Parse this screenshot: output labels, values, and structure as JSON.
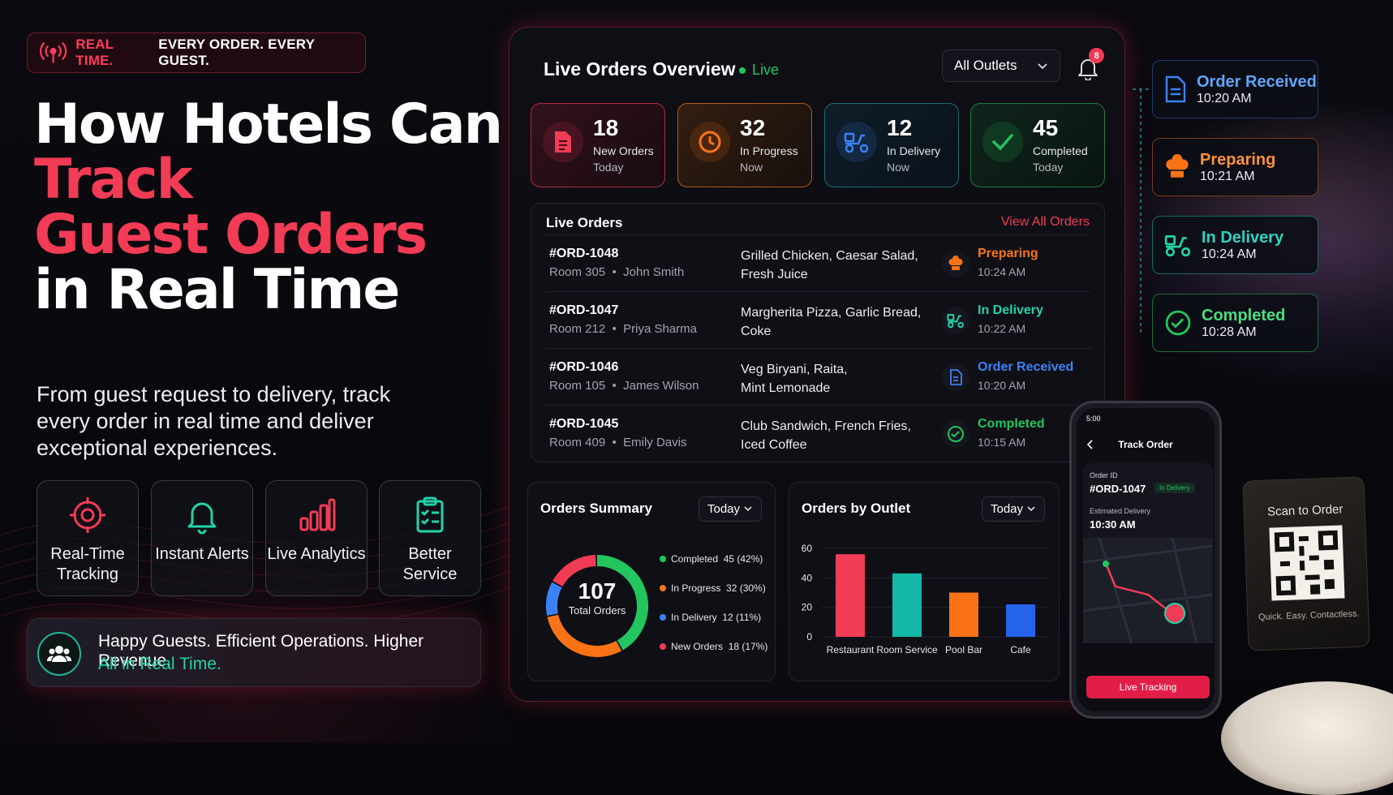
{
  "tagline": {
    "red": "REAL TIME.",
    "white": "EVERY ORDER. EVERY GUEST."
  },
  "headline": {
    "line1": "How Hotels Can",
    "line2": "Track",
    "line3": "Guest Orders",
    "line4": "in Real Time"
  },
  "subtitle": "From guest request to delivery, track every order in real time and deliver exceptional experiences.",
  "features": [
    {
      "label": "Real-Time Tracking",
      "icon": "target-icon"
    },
    {
      "label": "Instant Alerts",
      "icon": "bell-icon"
    },
    {
      "label": "Live Analytics",
      "icon": "bar-chart-icon"
    },
    {
      "label": "Better Service",
      "icon": "clipboard-check-icon"
    }
  ],
  "banner": {
    "line1": "Happy Guests. Efficient Operations. Higher Revenue.",
    "line2": "All in Real Time.",
    "icon": "users-icon"
  },
  "dashboard": {
    "title": "Live Orders Overview",
    "live_label": "Live",
    "outlet_select": "All Outlets",
    "notification_count": "8",
    "stats": [
      {
        "value": "18",
        "label": "New Orders",
        "sub": "Today",
        "color": "#f23b55",
        "icon": "document-icon"
      },
      {
        "value": "32",
        "label": "In Progress",
        "sub": "Now",
        "color": "#f97316",
        "icon": "clock-icon"
      },
      {
        "value": "12",
        "label": "In Delivery",
        "sub": "Now",
        "color": "#3b82f6",
        "icon": "delivery-scooter-icon"
      },
      {
        "value": "45",
        "label": "Completed",
        "sub": "Today",
        "color": "#22c55e",
        "icon": "check-icon"
      }
    ],
    "live_orders": {
      "title": "Live Orders",
      "view_all": "View All Orders",
      "rows": [
        {
          "id": "#ORD-1048",
          "room": "Room 305",
          "guest": "John Smith",
          "items1": "Grilled Chicken, Caesar Salad,",
          "items2": "Fresh Juice",
          "status": "Preparing",
          "time": "10:24 AM",
          "color": "#f97316"
        },
        {
          "id": "#ORD-1047",
          "room": "Room 212",
          "guest": "Priya Sharma",
          "items1": "Margherita Pizza, Garlic Bread,",
          "items2": "Coke",
          "status": "In Delivery",
          "time": "10:22 AM",
          "color": "#22d3a8"
        },
        {
          "id": "#ORD-1046",
          "room": "Room 105",
          "guest": "James Wilson",
          "items1": "Veg Biryani, Raita,",
          "items2": "Mint Lemonade",
          "status": "Order Received",
          "time": "10:20 AM",
          "color": "#3b82f6"
        },
        {
          "id": "#ORD-1045",
          "room": "Room 409",
          "guest": "Emily Davis",
          "items1": "Club Sandwich, French Fries,",
          "items2": "Iced Coffee",
          "status": "Completed",
          "time": "10:15 AM",
          "color": "#22c55e"
        }
      ]
    },
    "summary": {
      "title": "Orders Summary",
      "period": "Today",
      "total": "107",
      "total_label": "Total Orders",
      "legend": [
        {
          "name": "Completed",
          "value": "45 (42%)",
          "color": "#22c55e"
        },
        {
          "name": "In Progress",
          "value": "32 (30%)",
          "color": "#f97316"
        },
        {
          "name": "In Delivery",
          "value": "12 (11%)",
          "color": "#3b82f6"
        },
        {
          "name": "New Orders",
          "value": "18 (17%)",
          "color": "#f23b55"
        }
      ]
    },
    "by_outlet": {
      "title": "Orders by Outlet",
      "period": "Today"
    }
  },
  "chart_data": [
    {
      "type": "pie",
      "categories": [
        "Completed",
        "In Progress",
        "In Delivery",
        "New Orders"
      ],
      "values": [
        45,
        32,
        12,
        18
      ],
      "title": "Orders Summary"
    },
    {
      "type": "bar",
      "categories": [
        "Restaurant",
        "Room Service",
        "Pool Bar",
        "Cafe"
      ],
      "values": [
        56,
        43,
        30,
        22
      ],
      "colors": [
        "#f23b55",
        "#14b8a6",
        "#f97316",
        "#2563eb"
      ],
      "yticks": [
        "0",
        "20",
        "40",
        "60"
      ],
      "ylim": [
        0,
        66
      ],
      "title": "Orders by Outlet"
    }
  ],
  "timeline": [
    {
      "label": "Order Received",
      "time": "10:20 AM",
      "color": "#3b82f6",
      "icon": "document-icon"
    },
    {
      "label": "Preparing",
      "time": "10:21 AM",
      "color": "#f97316",
      "icon": "chef-hat-icon"
    },
    {
      "label": "In Delivery",
      "time": "10:24 AM",
      "color": "#22d3a8",
      "icon": "delivery-scooter-icon"
    },
    {
      "label": "Completed",
      "time": "10:28 AM",
      "color": "#22c55e",
      "icon": "check-circle-icon"
    }
  ],
  "phone": {
    "clock": "5:00",
    "title": "Track Order",
    "order_id_label": "Order ID",
    "order_id": "#ORD-1047",
    "status": "In Delivery",
    "eta_label": "Estimated Delivery",
    "eta": "10:30 AM",
    "button": "Live Tracking"
  },
  "qr_stand": {
    "title": "Scan to Order",
    "caption": "Quick. Easy. Contactless."
  }
}
